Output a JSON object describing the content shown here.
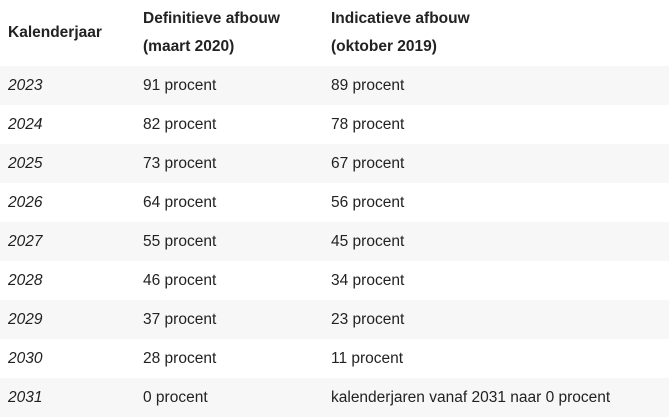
{
  "table": {
    "headers": [
      {
        "line1": "Kalenderjaar",
        "line2": ""
      },
      {
        "line1": "Definitieve afbouw",
        "line2": "(maart 2020)"
      },
      {
        "line1": "Indicatieve afbouw",
        "line2": "(oktober 2019)"
      }
    ],
    "rows": [
      {
        "year": "2023",
        "definitief": "91 procent",
        "indicatief": "89 procent"
      },
      {
        "year": "2024",
        "definitief": "82 procent",
        "indicatief": "78 procent"
      },
      {
        "year": "2025",
        "definitief": "73 procent",
        "indicatief": "67 procent"
      },
      {
        "year": "2026",
        "definitief": "64 procent",
        "indicatief": "56 procent"
      },
      {
        "year": "2027",
        "definitief": "55 procent",
        "indicatief": "45 procent"
      },
      {
        "year": "2028",
        "definitief": "46 procent",
        "indicatief": "34 procent"
      },
      {
        "year": "2029",
        "definitief": "37 procent",
        "indicatief": "23 procent"
      },
      {
        "year": "2030",
        "definitief": "28 procent",
        "indicatief": "11 procent"
      },
      {
        "year": "2031",
        "definitief": "0 procent",
        "indicatief": "kalenderjaren vanaf 2031 naar 0 procent"
      }
    ]
  }
}
